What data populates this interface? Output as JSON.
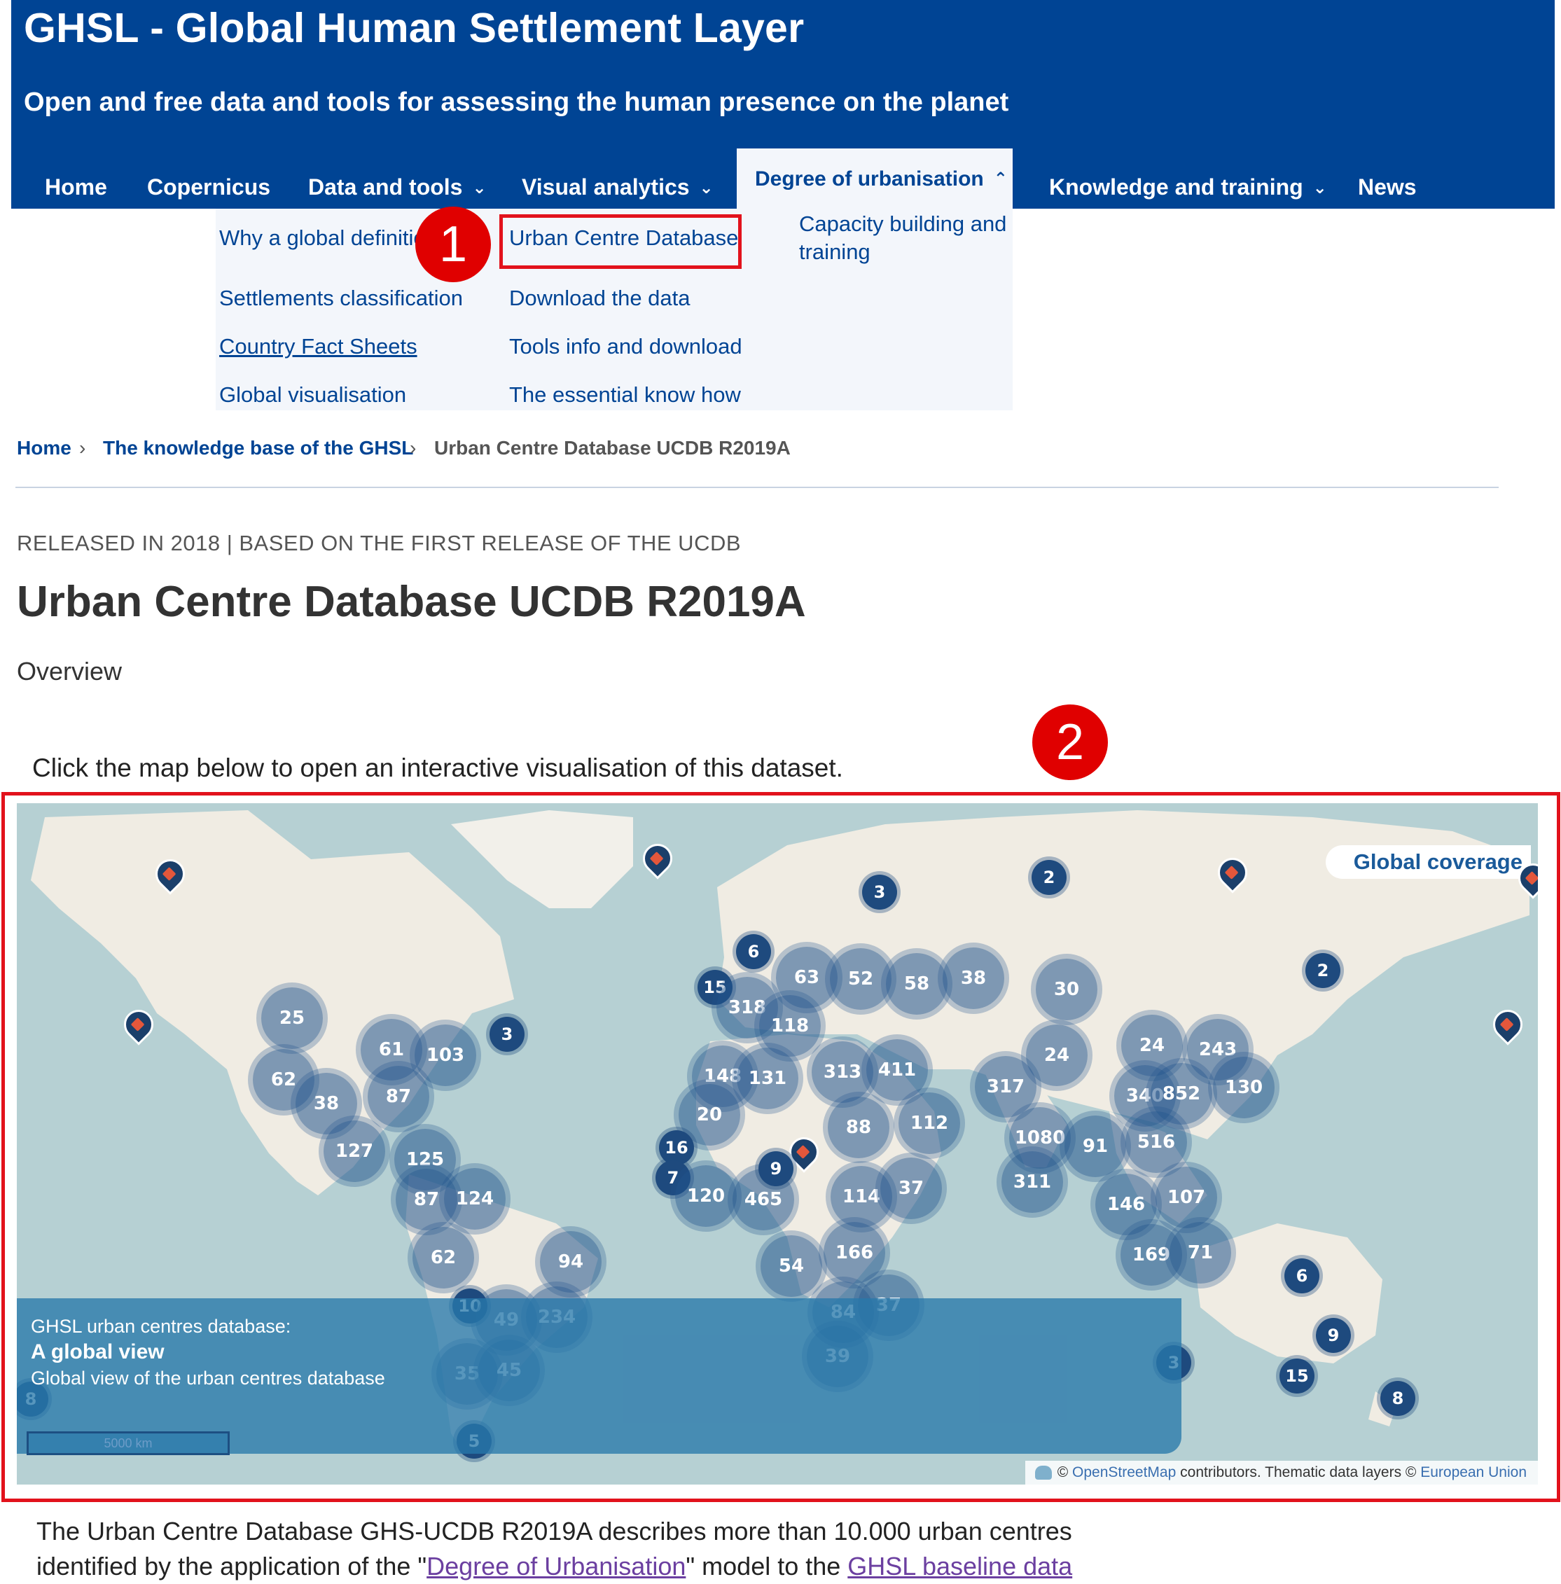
{
  "header": {
    "title": "GHSL - Global Human Settlement Layer",
    "subtitle": "Open and free data and tools for assessing the human presence on the planet"
  },
  "nav": {
    "items": [
      {
        "label": "Home"
      },
      {
        "label": "Copernicus"
      },
      {
        "label": "Data and tools"
      },
      {
        "label": "Visual analytics"
      },
      {
        "label": "Degree of urbanisation"
      },
      {
        "label": "Knowledge and training"
      },
      {
        "label": "News"
      }
    ]
  },
  "mega_menu": {
    "col1": [
      "Why a global definition",
      "Settlements classification",
      "Country Fact Sheets",
      "Global visualisation"
    ],
    "col2": [
      "Urban Centre Database",
      "Download the data",
      "Tools info and download",
      "The essential know how"
    ],
    "col3": [
      "Capacity building and",
      "training"
    ]
  },
  "annotations": {
    "badge1": "1",
    "badge2": "2"
  },
  "breadcrumb": {
    "items": [
      "Home",
      "The knowledge base of the GHSL",
      "Urban Centre Database UCDB R2019A"
    ]
  },
  "release_label": "RELEASED IN 2018 | BASED ON THE FIRST RELEASE OF THE UCDB",
  "page_title": "Urban Centre Database UCDB R2019A",
  "overview_label": "Overview",
  "map_intro": "Click the map below to open an interactive visualisation of this dataset.",
  "map": {
    "coverage_label": "Global coverage",
    "info": {
      "line1": "GHSL urban centres database:",
      "line2": "A global view",
      "line3": "Global view of the urban centres database"
    },
    "scale": "5000 km",
    "attribution": {
      "osm": "OpenStreetMap",
      "mid": "contributors. Thematic data layers ©",
      "eu": "European Union"
    },
    "clusters": [
      "25",
      "61",
      "103",
      "62",
      "38",
      "87",
      "127",
      "125",
      "87",
      "124",
      "62",
      "94",
      "10",
      "49",
      "234",
      "35",
      "45",
      "5",
      "8",
      "3",
      "15",
      "318",
      "118",
      "63",
      "52",
      "58",
      "38",
      "30",
      "6",
      "148",
      "131",
      "313",
      "411",
      "317",
      "24",
      "24",
      "243",
      "340",
      "852",
      "130",
      "20",
      "88",
      "112",
      "1080",
      "91",
      "516",
      "16",
      "7",
      "120",
      "465",
      "9",
      "114",
      "37",
      "311",
      "146",
      "107",
      "169",
      "71",
      "54",
      "166",
      "37",
      "84",
      "39",
      "3",
      "2",
      "3",
      "2",
      "6",
      "9",
      "15",
      "8"
    ]
  },
  "body": {
    "line1": "The Urban Centre Database GHS-UCDB R2019A describes more than 10.000 urban centres",
    "line2_a": "identified by the application of the \"",
    "line2_link1": "Degree of Urbanisation",
    "line2_b": "\" model to the ",
    "line2_link2": "GHSL baseline data"
  }
}
